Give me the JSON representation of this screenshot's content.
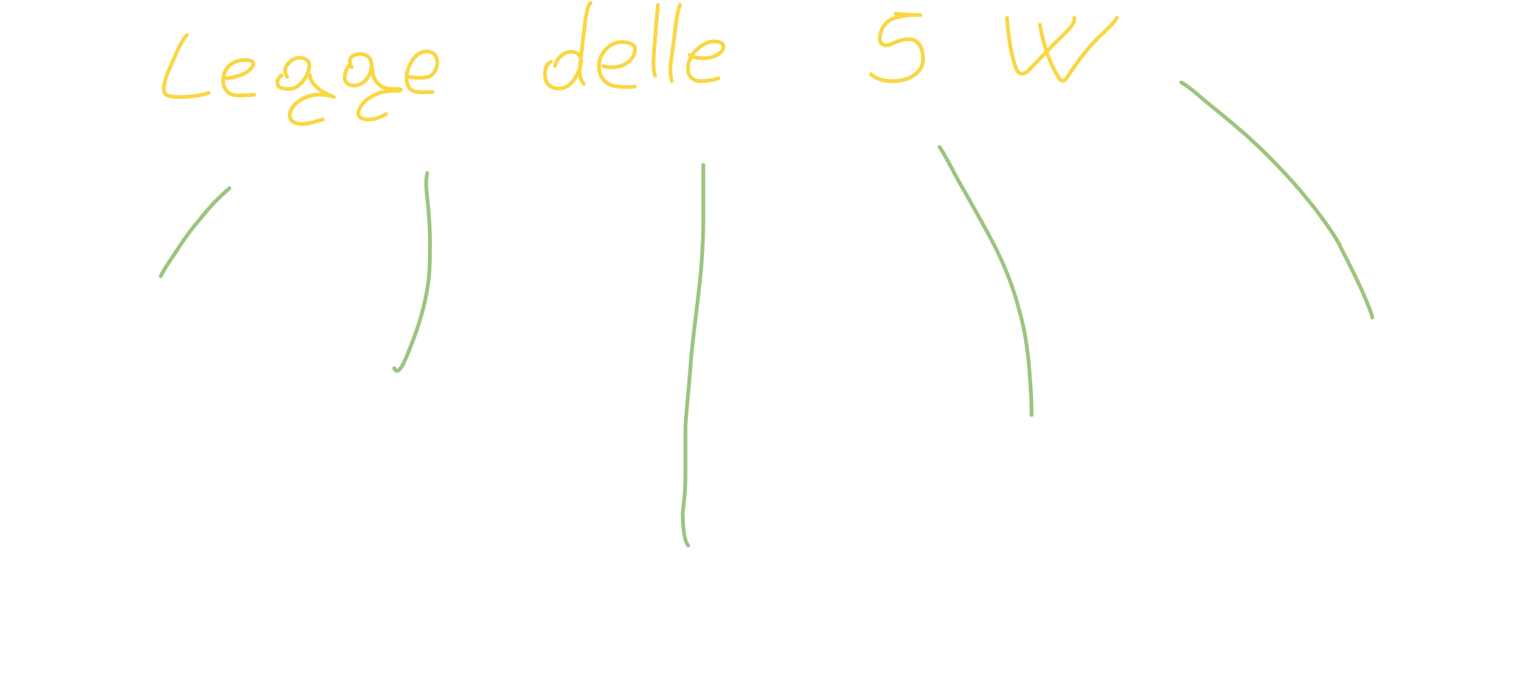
{
  "title": "Legge delle 5 W",
  "colors": {
    "title_ink": "#f9d743",
    "branch_ink": "#9cc47e",
    "background": "#ffffff"
  },
  "branches": [
    "",
    "",
    "",
    "",
    ""
  ]
}
